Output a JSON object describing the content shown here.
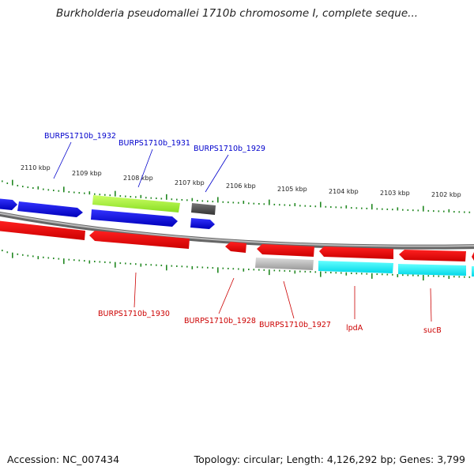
{
  "title": "Burkholderia pseudomallei 1710b chromosome I, complete seque...",
  "ruler": {
    "tick_labels": [
      "2110 kbp",
      "2109 kbp",
      "2108 kbp",
      "2107 kbp",
      "2106 kbp",
      "2105 kbp",
      "2104 kbp",
      "2103 kbp",
      "2102 kbp"
    ]
  },
  "genes": {
    "top": [
      {
        "name": "BURPS1710b_1932",
        "color": "#0000cc"
      },
      {
        "name": "BURPS1710b_1931",
        "color": "#0000cc"
      },
      {
        "name": "BURPS1710b_1929",
        "color": "#0000cc"
      }
    ],
    "bottom": [
      {
        "name": "BURPS1710b_1930",
        "color": "#cc0000"
      },
      {
        "name": "BURPS1710b_1928",
        "color": "#cc0000"
      },
      {
        "name": "BURPS1710b_1927",
        "color": "#cc0000"
      },
      {
        "name": "lpdA",
        "color": "#cc0000"
      },
      {
        "name": "sucB",
        "color": "#cc0000"
      }
    ]
  },
  "colors": {
    "forward_cds": "#0000ee",
    "reverse_cds": "#ff0000",
    "rna_green": "#99ee22",
    "cyan_feature": "#00ffff",
    "gray_feature": "#aaaaaa",
    "dark_feature": "#555555",
    "backbone": "#888888",
    "tick": "#228822"
  },
  "footer": {
    "accession": "Accession: NC_007434",
    "stats": "Topology: circular; Length: 4,126,292 bp; Genes: 3,799"
  }
}
